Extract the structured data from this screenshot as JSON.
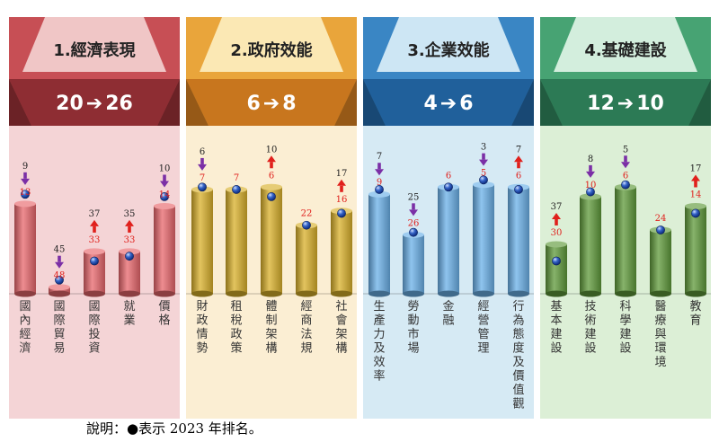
{
  "chart_data": {
    "type": "bar",
    "note": "說明：●表示 2023 年排名。",
    "ylim": [
      0,
      50
    ],
    "panels": [
      {
        "title": "1.經濟表現",
        "rank_2024": "20",
        "rank_2023": "26",
        "colors": {
          "top": "#f0c6c6",
          "trap": "#c74f55",
          "band": "#8e2d33",
          "bg": "#f4d4d6",
          "bar": "#e8676c"
        },
        "categories": [
          "國內經濟",
          "國際貿易",
          "國際投資",
          "就業",
          "價格"
        ],
        "values_2024": [
          13,
          48,
          33,
          33,
          14
        ],
        "values_2023": [
          9,
          45,
          37,
          35,
          10
        ],
        "change": [
          "down",
          "down",
          "up",
          "up",
          "down"
        ]
      },
      {
        "title": "2.政府效能",
        "rank_2024": "6",
        "rank_2023": "8",
        "colors": {
          "top": "#fbe8b4",
          "trap": "#e9a53b",
          "band": "#c8761e",
          "bg": "#fbeed3",
          "bar": "#d9b02a"
        },
        "categories": [
          "財政情勢",
          "租稅政策",
          "體制架構",
          "經商法規",
          "社會架構"
        ],
        "values_2024": [
          7,
          7,
          6,
          22,
          16
        ],
        "values_2023": [
          6,
          7,
          10,
          22,
          17
        ],
        "change": [
          "down",
          "none",
          "up",
          "none",
          "up"
        ]
      },
      {
        "title": "3.企業效能",
        "rank_2024": "4",
        "rank_2023": "6",
        "colors": {
          "top": "#cde6f4",
          "trap": "#3a86c4",
          "band": "#20609b",
          "bg": "#d6eaf4",
          "bar": "#6ab0e8"
        },
        "categories": [
          "生產力及效率",
          "勞動市場",
          "金融",
          "經營管理",
          "行為態度及價值觀"
        ],
        "values_2024": [
          9,
          26,
          6,
          5,
          6
        ],
        "values_2023": [
          7,
          25,
          6,
          3,
          7
        ],
        "change": [
          "down",
          "down",
          "none",
          "down",
          "up"
        ]
      },
      {
        "title": "4.基礎建設",
        "rank_2024": "12",
        "rank_2023": "10",
        "colors": {
          "top": "#d3eedd",
          "trap": "#47a373",
          "band": "#2c7a55",
          "bg": "#dcefd6",
          "bar": "#5f9a3a"
        },
        "categories": [
          "基本建設",
          "技術建設",
          "科學建設",
          "醫療與環境",
          "教育"
        ],
        "values_2024": [
          30,
          10,
          6,
          24,
          14
        ],
        "values_2023": [
          37,
          8,
          5,
          24,
          17
        ],
        "change": [
          "up",
          "down",
          "down",
          "none",
          "up"
        ]
      }
    ]
  }
}
